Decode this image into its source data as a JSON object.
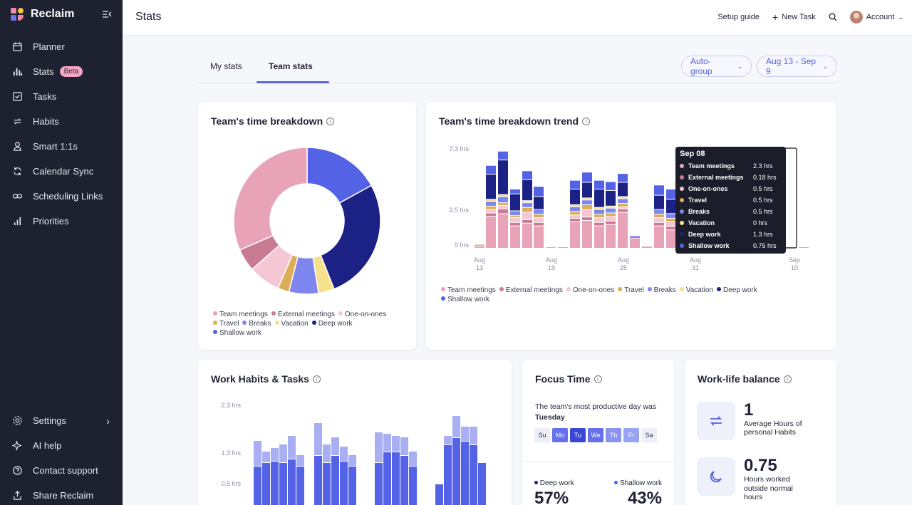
{
  "app": {
    "name": "Reclaim"
  },
  "sidebar": {
    "items": [
      {
        "label": "Planner",
        "icon": "calendar-icon"
      },
      {
        "label": "Stats",
        "icon": "bar-chart-icon",
        "badge": "Beta"
      },
      {
        "label": "Tasks",
        "icon": "checkbox-icon"
      },
      {
        "label": "Habits",
        "icon": "repeat-icon"
      },
      {
        "label": "Smart 1:1s",
        "icon": "people-icon"
      },
      {
        "label": "Calendar Sync",
        "icon": "sync-icon"
      },
      {
        "label": "Scheduling Links",
        "icon": "link-icon"
      },
      {
        "label": "Priorities",
        "icon": "priority-bars-icon"
      }
    ],
    "bottom": [
      {
        "label": "Settings",
        "icon": "gear-icon"
      },
      {
        "label": "AI help",
        "icon": "sparkle-icon"
      },
      {
        "label": "Contact support",
        "icon": "help-icon"
      },
      {
        "label": "Share Reclaim",
        "icon": "share-icon"
      }
    ]
  },
  "header": {
    "title": "Stats",
    "setup_guide": "Setup guide",
    "new_task": "New Task",
    "account": "Account"
  },
  "tabs": {
    "my_stats": "My stats",
    "team_stats": "Team stats",
    "active": "Team stats"
  },
  "filters": {
    "group": "Auto-group",
    "date_range": "Aug 13 - Sep 9"
  },
  "colors": {
    "team_meetings": "#e9a3b8",
    "external_meetings": "#c97b94",
    "one_on_ones": "#f5c6d4",
    "travel": "#dcae58",
    "breaks": "#7c86ee",
    "vacation": "#f7e08c",
    "deep_work": "#1c2185",
    "shallow_work": "#5462e6",
    "accent": "#5a63e0"
  },
  "breakdown": {
    "title": "Team's time breakdown",
    "legend": [
      "Team meetings",
      "External meetings",
      "One-on-ones",
      "Travel",
      "Breaks",
      "Vacation",
      "Deep work",
      "Shallow work"
    ],
    "chart_data": {
      "type": "pie",
      "labels": [
        "Shallow work",
        "Deep work",
        "Vacation",
        "Breaks",
        "Travel",
        "One-on-ones",
        "External meetings",
        "Team meetings"
      ],
      "values": [
        17,
        27,
        3.5,
        6.5,
        2.5,
        7,
        5,
        31.5
      ]
    }
  },
  "trend": {
    "title": "Team's time breakdown trend",
    "y_ticks": [
      "7.3 hrs",
      "2.5 hrs",
      "0 hrs"
    ],
    "x_ticks": [
      {
        "month": "Aug",
        "day": "13"
      },
      {
        "month": "Aug",
        "day": "19"
      },
      {
        "month": "Aug",
        "day": "25"
      },
      {
        "month": "Aug",
        "day": "31"
      },
      {
        "month": "Sep",
        "day": "10"
      }
    ],
    "legend": [
      "Team meetings",
      "External meetings",
      "One-on-ones",
      "Travel",
      "Breaks",
      "Vacation",
      "Deep work",
      "Shallow work"
    ],
    "tooltip": {
      "title": "Sep 08",
      "rows": [
        {
          "label": "Team meetings",
          "value": "2.3 hrs"
        },
        {
          "label": "External meetings",
          "value": "0.18 hrs"
        },
        {
          "label": "One-on-ones",
          "value": "0.5 hrs"
        },
        {
          "label": "Travel",
          "value": "0.5 hrs"
        },
        {
          "label": "Breaks",
          "value": "0.5 hrs"
        },
        {
          "label": "Vacation",
          "value": "0 hrs"
        },
        {
          "label": "Deep work",
          "value": "1.3 hrs"
        },
        {
          "label": "Shallow work",
          "value": "0.75 hrs"
        }
      ]
    }
  },
  "habits_tasks": {
    "title": "Work Habits & Tasks",
    "y_ticks": [
      "2.3 hrs",
      "1.3 hrs",
      "0.5 hrs"
    ]
  },
  "focus": {
    "title": "Focus Time",
    "text": "The team's most productive day was",
    "day": "Tuesday",
    "days": [
      "Su",
      "Mo",
      "Tu",
      "We",
      "Th",
      "Fr",
      "Sa"
    ],
    "deep_label": "Deep work",
    "shallow_label": "Shallow work",
    "deep_pct": "57%",
    "shallow_pct": "43%"
  },
  "wlb": {
    "title": "Work-life balance",
    "stat1_value": "1",
    "stat1_label": "Average Hours of personal Habits",
    "stat2_value": "0.75",
    "stat2_label": "Hours worked outside normal hours"
  }
}
